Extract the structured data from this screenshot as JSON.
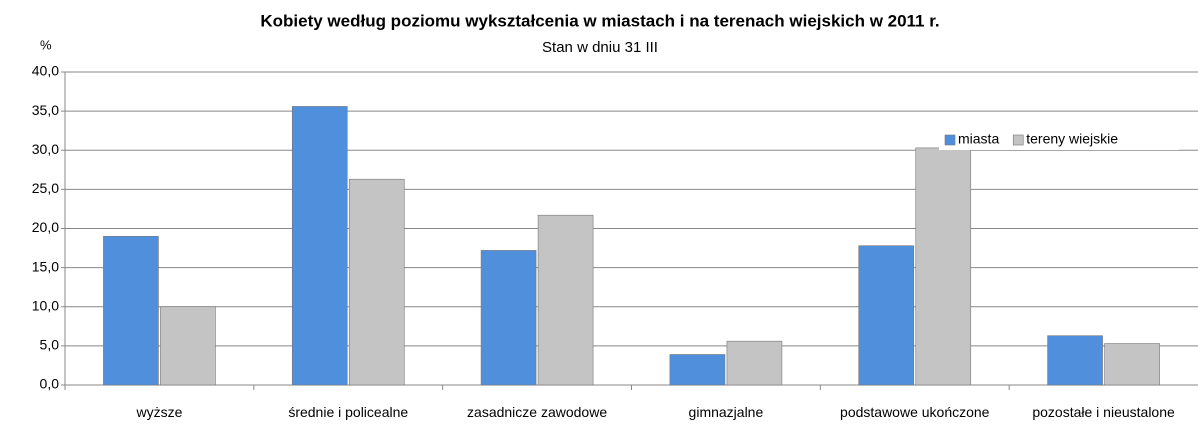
{
  "chart_data": {
    "type": "bar",
    "title": "Kobiety według poziomu wykształcenia w miastach  i na terenach wiejskich w 2011 r.",
    "subtitle": "Stan w dniu 31 III",
    "y_label": "%",
    "categories": [
      "wyższe",
      "średnie i policealne",
      "zasadnicze zawodowe",
      "gimnazjalne",
      "podstawowe ukończone",
      "pozostałe i nieustalone"
    ],
    "series": [
      {
        "name": "miasta",
        "color": "#4f8fdc",
        "values": [
          19.0,
          35.6,
          17.2,
          3.9,
          17.8,
          6.3
        ]
      },
      {
        "name": "tereny wiejskie",
        "color": "#c4c4c4",
        "values": [
          10.0,
          26.3,
          21.7,
          5.6,
          30.3,
          5.3
        ]
      }
    ],
    "ylim": [
      0,
      40
    ],
    "yticks": [
      {
        "value": 0,
        "label": "0,0"
      },
      {
        "value": 5,
        "label": "5,0"
      },
      {
        "value": 10,
        "label": "10,0"
      },
      {
        "value": 15,
        "label": "15,0"
      },
      {
        "value": 20,
        "label": "20,0"
      },
      {
        "value": 25,
        "label": "25,0"
      },
      {
        "value": 30,
        "label": "30,0"
      },
      {
        "value": 35,
        "label": "35,0"
      },
      {
        "value": 40,
        "label": "40,0"
      }
    ],
    "grid": true,
    "legend": "top-right"
  }
}
